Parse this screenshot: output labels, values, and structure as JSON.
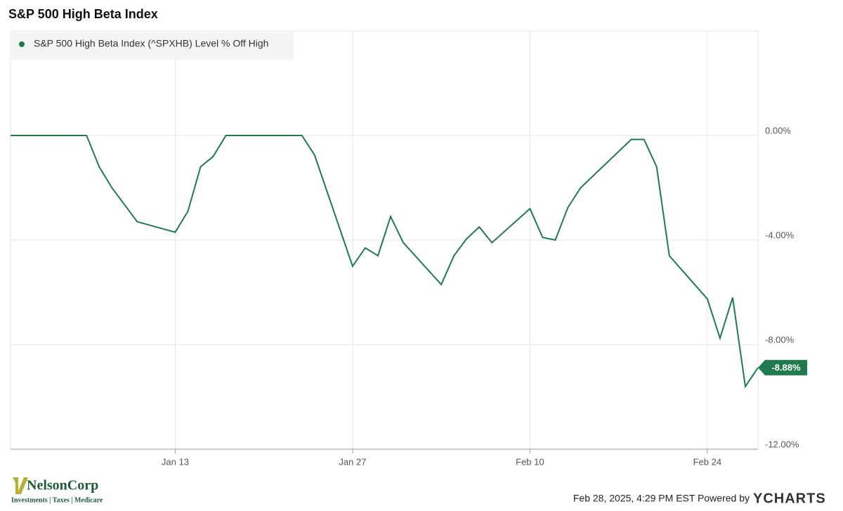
{
  "chart_data": {
    "type": "line",
    "title": "S&P 500 High Beta Index",
    "x": [
      "Dec 31",
      "Jan 2",
      "Jan 3",
      "Jan 6",
      "Jan 7",
      "Jan 8",
      "Jan 10",
      "Jan 13",
      "Jan 14",
      "Jan 15",
      "Jan 16",
      "Jan 17",
      "Jan 21",
      "Jan 22",
      "Jan 23",
      "Jan 24",
      "Jan 27",
      "Jan 28",
      "Jan 29",
      "Jan 30",
      "Jan 31",
      "Feb 3",
      "Feb 4",
      "Feb 5",
      "Feb 6",
      "Feb 7",
      "Feb 10",
      "Feb 11",
      "Feb 12",
      "Feb 13",
      "Feb 14",
      "Feb 18",
      "Feb 19",
      "Feb 20",
      "Feb 21",
      "Feb 24",
      "Feb 25",
      "Feb 26",
      "Feb 27",
      "Feb 28"
    ],
    "series": [
      {
        "name": "S&P 500 High Beta Index (^SPXHB) Level % Off High",
        "color": "#1f7a4f",
        "values": [
          0,
          0,
          0,
          0,
          -1.2,
          -2.0,
          -3.3,
          -3.7,
          -2.9,
          -1.2,
          -0.8,
          0,
          0,
          0,
          0,
          -0.75,
          -5.0,
          -4.3,
          -4.6,
          -3.1,
          -4.1,
          -5.7,
          -4.6,
          -3.95,
          -3.5,
          -4.1,
          -2.8,
          -3.9,
          -4.0,
          -2.75,
          -2.0,
          -0.15,
          -0.15,
          -1.2,
          -4.6,
          -6.25,
          -7.75,
          -6.2,
          -9.6,
          -8.88
        ],
        "value_labels": [
          null,
          null,
          null,
          null,
          null,
          null,
          null,
          null,
          null,
          null,
          null,
          null,
          null,
          null,
          null,
          null,
          null,
          null,
          null,
          null,
          null,
          null,
          null,
          null,
          null,
          null,
          null,
          null,
          null,
          null,
          null,
          null,
          null,
          null,
          null,
          null,
          null,
          null,
          null,
          "-8.88%"
        ]
      }
    ],
    "xlim": [
      "Dec 31",
      "Feb 28"
    ],
    "xticks": [
      "Jan 13",
      "Jan 27",
      "Feb 10",
      "Feb 24"
    ],
    "ylim": [
      -12,
      4
    ],
    "yticks": [
      {
        "value": 0,
        "label": "0.00%"
      },
      {
        "value": -4,
        "label": "-4.00%"
      },
      {
        "value": -8,
        "label": "-8.00%"
      },
      {
        "value": -12,
        "label": "-12.00%"
      }
    ],
    "grid": true,
    "legend": "top-left"
  },
  "footer": {
    "timestamp": "Feb 28, 2025, 4:29 PM EST Powered by",
    "brand": "YCHARTS",
    "logo_name": "NelsonCorp",
    "logo_tagline": "Investments | Taxes | Medicare"
  }
}
